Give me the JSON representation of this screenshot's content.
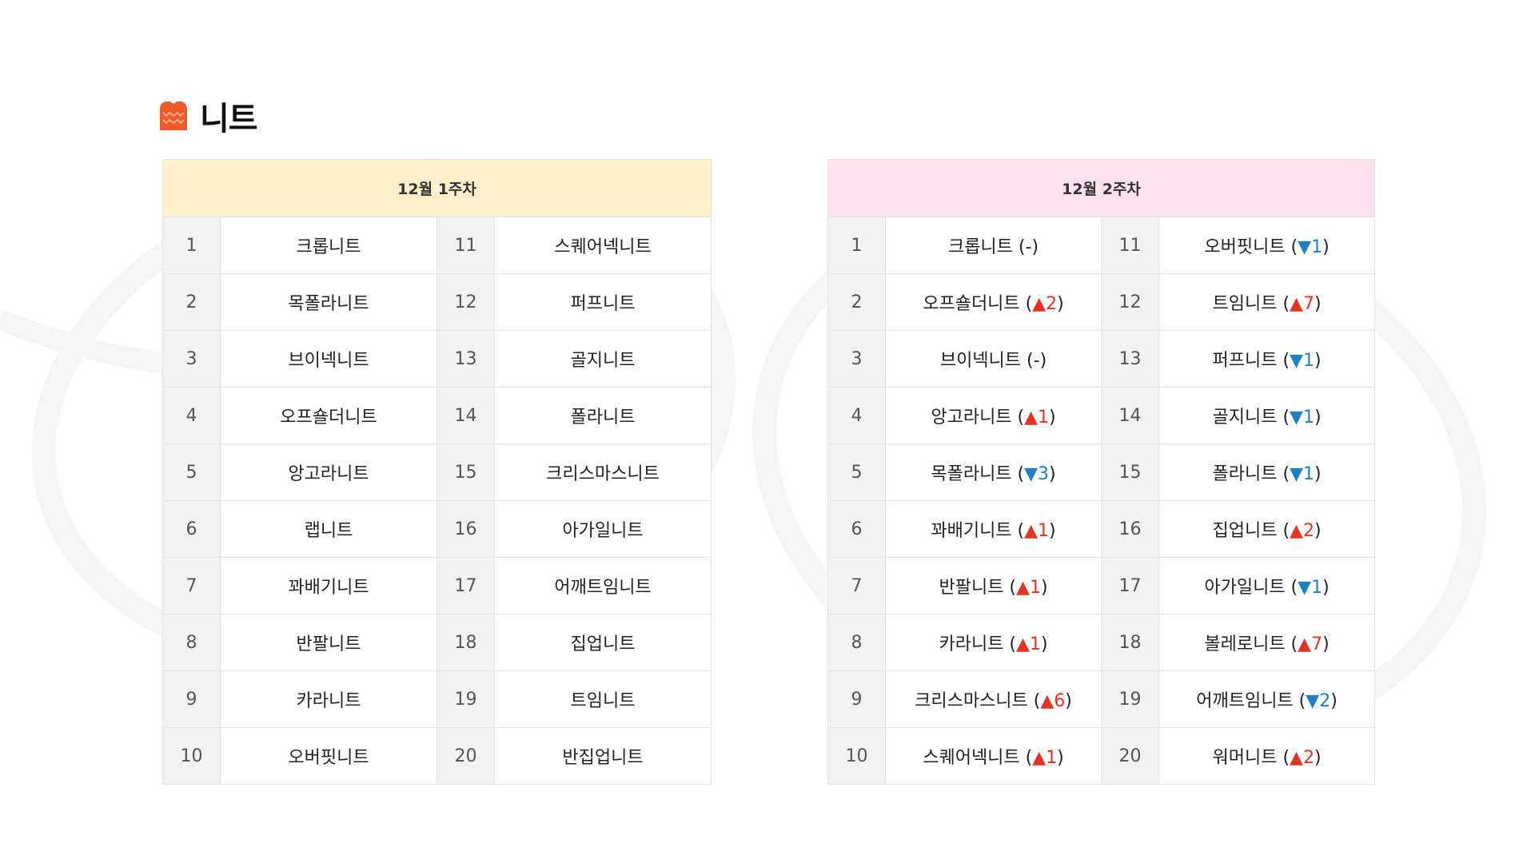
{
  "header": {
    "title": "니트",
    "icon": "sweater-icon",
    "icon_color": "#f05a2a"
  },
  "colors": {
    "week1_header_bg": "#fdefc9",
    "week2_header_bg": "#fde1ee",
    "up": "#e53322",
    "down": "#1f7fc2"
  },
  "week1": {
    "title": "12월 1주차",
    "rows": [
      {
        "rank": "1",
        "name": "크롭니트"
      },
      {
        "rank": "2",
        "name": "목폴라니트"
      },
      {
        "rank": "3",
        "name": "브이넥니트"
      },
      {
        "rank": "4",
        "name": "오프숄더니트"
      },
      {
        "rank": "5",
        "name": "앙고라니트"
      },
      {
        "rank": "6",
        "name": "랩니트"
      },
      {
        "rank": "7",
        "name": "꽈배기니트"
      },
      {
        "rank": "8",
        "name": "반팔니트"
      },
      {
        "rank": "9",
        "name": "카라니트"
      },
      {
        "rank": "10",
        "name": "오버핏니트"
      },
      {
        "rank": "11",
        "name": "스퀘어넥니트"
      },
      {
        "rank": "12",
        "name": "퍼프니트"
      },
      {
        "rank": "13",
        "name": "골지니트"
      },
      {
        "rank": "14",
        "name": "폴라니트"
      },
      {
        "rank": "15",
        "name": "크리스마스니트"
      },
      {
        "rank": "16",
        "name": "아가일니트"
      },
      {
        "rank": "17",
        "name": "어깨트임니트"
      },
      {
        "rank": "18",
        "name": "집업니트"
      },
      {
        "rank": "19",
        "name": "트임니트"
      },
      {
        "rank": "20",
        "name": "반집업니트"
      }
    ]
  },
  "week2": {
    "title": "12월 2주차",
    "rows": [
      {
        "rank": "1",
        "name": "크롭니트",
        "dir": "same",
        "change": "-"
      },
      {
        "rank": "2",
        "name": "오프숄더니트",
        "dir": "up",
        "change": "2"
      },
      {
        "rank": "3",
        "name": "브이넥니트",
        "dir": "same",
        "change": "-"
      },
      {
        "rank": "4",
        "name": "앙고라니트",
        "dir": "up",
        "change": "1"
      },
      {
        "rank": "5",
        "name": "목폴라니트",
        "dir": "down",
        "change": "3"
      },
      {
        "rank": "6",
        "name": "꽈배기니트",
        "dir": "up",
        "change": "1"
      },
      {
        "rank": "7",
        "name": "반팔니트",
        "dir": "up",
        "change": "1"
      },
      {
        "rank": "8",
        "name": "카라니트",
        "dir": "up",
        "change": "1"
      },
      {
        "rank": "9",
        "name": "크리스마스니트",
        "dir": "up",
        "change": "6"
      },
      {
        "rank": "10",
        "name": "스퀘어넥니트",
        "dir": "up",
        "change": "1"
      },
      {
        "rank": "11",
        "name": "오버핏니트",
        "dir": "down",
        "change": "1"
      },
      {
        "rank": "12",
        "name": "트임니트",
        "dir": "up",
        "change": "7"
      },
      {
        "rank": "13",
        "name": "퍼프니트",
        "dir": "down",
        "change": "1"
      },
      {
        "rank": "14",
        "name": "골지니트",
        "dir": "down",
        "change": "1"
      },
      {
        "rank": "15",
        "name": "폴라니트",
        "dir": "down",
        "change": "1"
      },
      {
        "rank": "16",
        "name": "집업니트",
        "dir": "up",
        "change": "2"
      },
      {
        "rank": "17",
        "name": "아가일니트",
        "dir": "down",
        "change": "1"
      },
      {
        "rank": "18",
        "name": "볼레로니트",
        "dir": "up",
        "change": "7"
      },
      {
        "rank": "19",
        "name": "어깨트임니트",
        "dir": "down",
        "change": "2"
      },
      {
        "rank": "20",
        "name": "워머니트",
        "dir": "up",
        "change": "2"
      }
    ]
  }
}
